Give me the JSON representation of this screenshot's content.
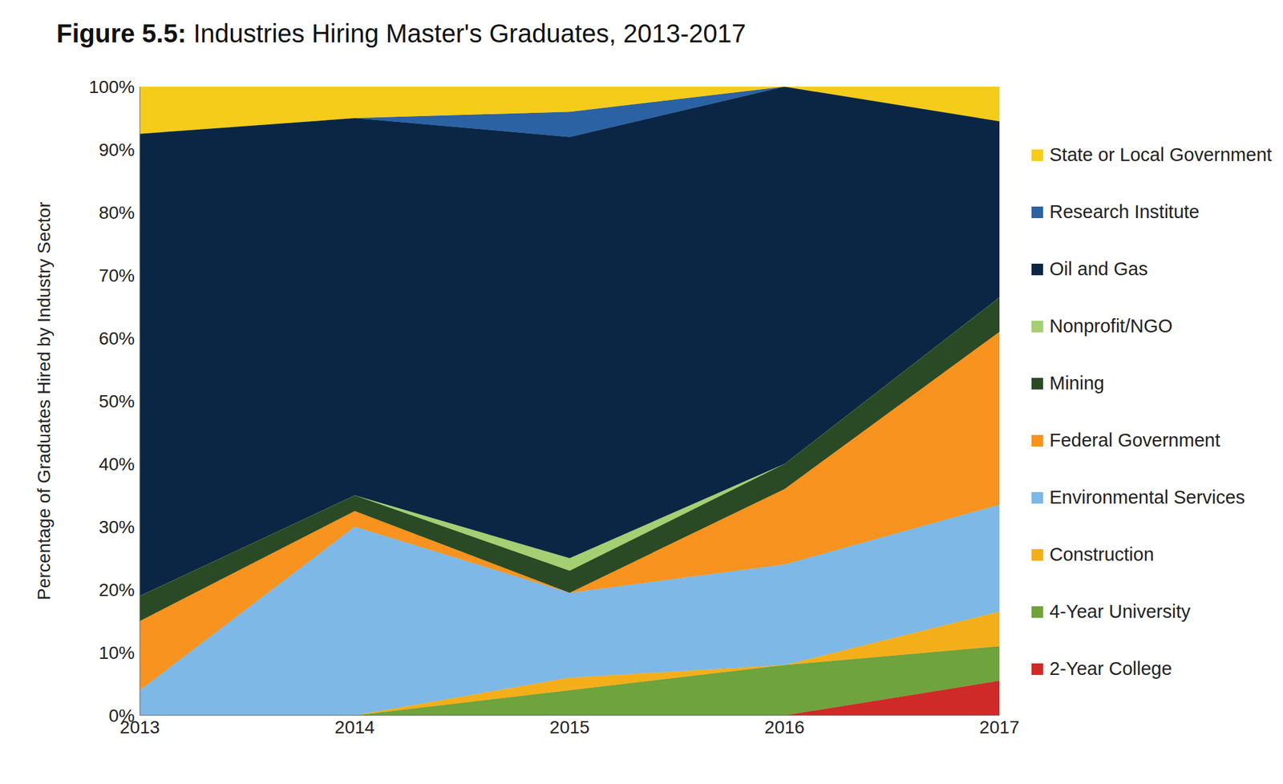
{
  "chart_data": {
    "type": "area",
    "title": "Figure 5.5: Industries Hiring Master's Graduates, 2013-2017",
    "y_label": "Percentage of Graduates Hired by Industry Sector",
    "stacked": true,
    "legend": "right",
    "grid": false,
    "x": [
      2013,
      2014,
      2015,
      2016,
      2017
    ],
    "xlim": [
      2013,
      2017
    ],
    "xticks": [
      2013,
      2014,
      2015,
      2016,
      2017
    ],
    "ylim": [
      0,
      100
    ],
    "yticks": [
      {
        "value": 0,
        "label": "0%"
      },
      {
        "value": 10,
        "label": "10%"
      },
      {
        "value": 20,
        "label": "20%"
      },
      {
        "value": 30,
        "label": "30%"
      },
      {
        "value": 40,
        "label": "40%"
      },
      {
        "value": 50,
        "label": "50%"
      },
      {
        "value": 60,
        "label": "60%"
      },
      {
        "value": 70,
        "label": "70%"
      },
      {
        "value": 80,
        "label": "80%"
      },
      {
        "value": 90,
        "label": "90%"
      },
      {
        "value": 100,
        "label": "100%"
      }
    ],
    "series": [
      {
        "name": "2-Year College",
        "color": "#cf2a27",
        "values": [
          0,
          0,
          0,
          0,
          5.5
        ]
      },
      {
        "name": "4-Year University",
        "color": "#6fa33d",
        "values": [
          0,
          0,
          4,
          8,
          5.5
        ]
      },
      {
        "name": "Construction",
        "color": "#f4ae1a",
        "values": [
          0,
          0,
          2,
          0,
          5.5
        ]
      },
      {
        "name": "Environmental Services",
        "color": "#7db8e6",
        "values": [
          4,
          30,
          13.5,
          16,
          17
        ]
      },
      {
        "name": "Federal Government",
        "color": "#f7931e",
        "values": [
          11,
          2.5,
          0,
          12,
          27.5
        ]
      },
      {
        "name": "Mining",
        "color": "#2a4a25",
        "values": [
          4,
          2.5,
          3.5,
          4,
          5.5
        ]
      },
      {
        "name": "Nonprofit/NGO",
        "color": "#a4cf72",
        "values": [
          0,
          0,
          2,
          0,
          0
        ]
      },
      {
        "name": "Oil and Gas",
        "color": "#0b2645",
        "values": [
          73.5,
          60,
          67,
          60,
          28
        ]
      },
      {
        "name": "Research Institute",
        "color": "#2b62a3",
        "values": [
          0,
          0,
          4,
          0,
          0
        ]
      },
      {
        "name": "State or Local Government",
        "color": "#f6cc1a",
        "values": [
          7.5,
          5,
          4,
          0,
          5.5
        ]
      }
    ]
  }
}
